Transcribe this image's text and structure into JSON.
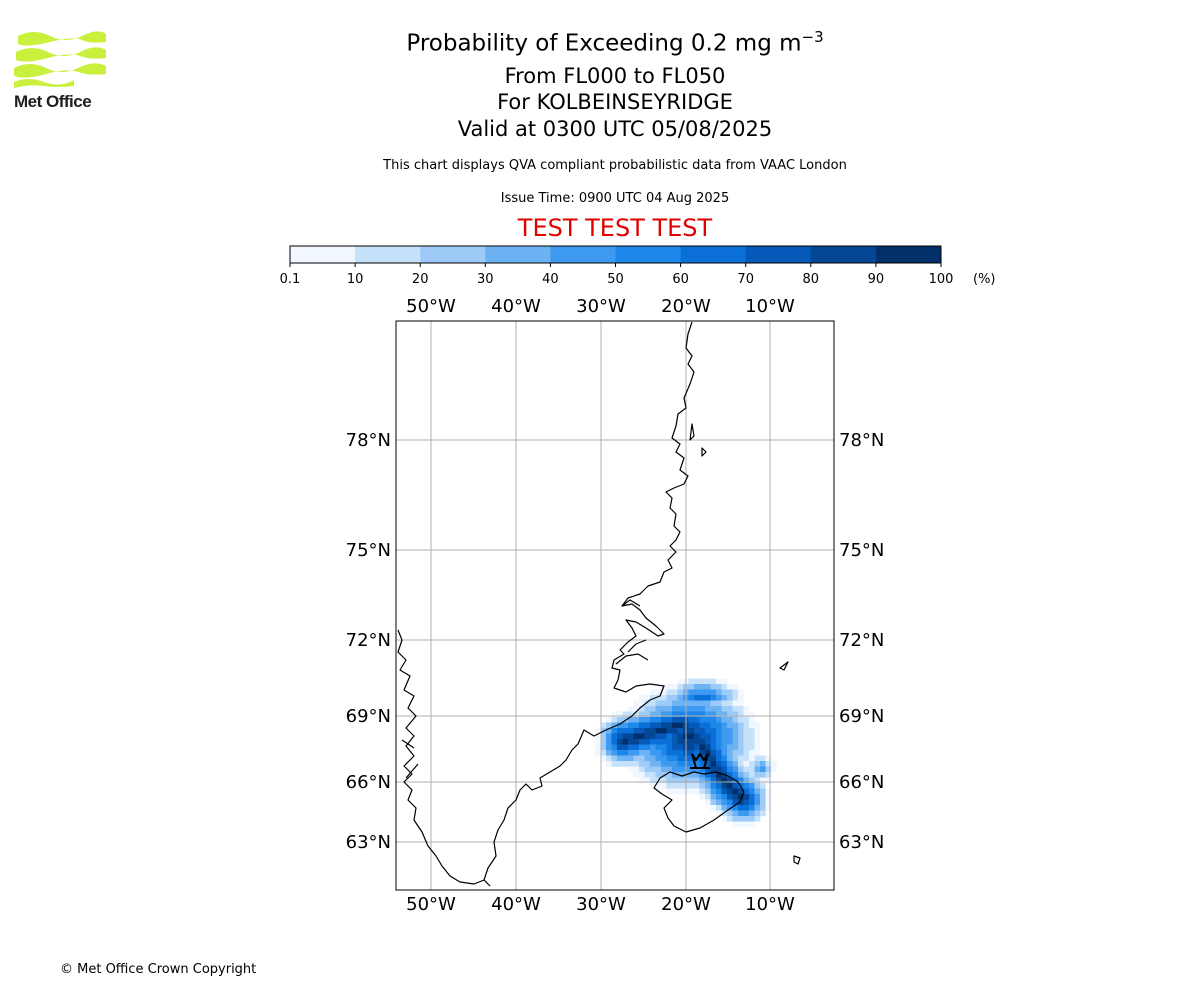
{
  "logo": {
    "name": "Met Office",
    "color": "#c8f03c"
  },
  "title": {
    "line1_main": "Probability of Exceeding 0.2 mg m",
    "line1_sup": "−3",
    "line2": "From FL000 to FL050",
    "line3": "For KOLBEINSEYRIDGE",
    "line4": "Valid at 0300 UTC 05/08/2025"
  },
  "subtitle": "This chart displays QVA compliant probabilistic data from VAAC London",
  "issue_time": "Issue Time: 0900 UTC 04 Aug 2025",
  "test_banner": "TEST TEST TEST",
  "colorbar": {
    "unit": "(%)",
    "ticks": [
      "0.1",
      "10",
      "20",
      "30",
      "40",
      "50",
      "60",
      "70",
      "80",
      "90",
      "100"
    ],
    "colors": [
      "#f0f7ff",
      "#c6e2fa",
      "#9dcaf6",
      "#6db3f3",
      "#3d9af0",
      "#1e88ea",
      "#0a6fd6",
      "#0559b8",
      "#044795",
      "#02306a"
    ]
  },
  "map": {
    "lon_labels": [
      "50°W",
      "40°W",
      "30°W",
      "20°W",
      "10°W"
    ],
    "lat_labels": [
      "78°N",
      "75°N",
      "72°N",
      "69°N",
      "66°N",
      "63°N"
    ],
    "volcano_icon": "volcano-icon"
  },
  "copyright": "© Met Office Crown Copyright"
}
